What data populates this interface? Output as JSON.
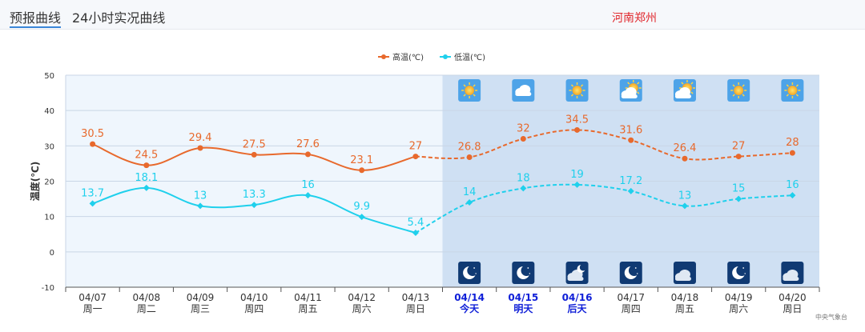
{
  "tabs": [
    {
      "label": "预报曲线",
      "active": true
    },
    {
      "label": "24小时实况曲线",
      "active": false
    }
  ],
  "city": "河南郑州",
  "source": "中央气象台",
  "chart_data": {
    "type": "line",
    "ylabel": "温度(℃)",
    "ylim": [
      -10,
      50
    ],
    "yticks": [
      -10,
      0,
      10,
      20,
      30,
      40,
      50
    ],
    "grid": true,
    "legend_position": "top-center",
    "categories": [
      {
        "date": "04/07",
        "day": "周一"
      },
      {
        "date": "04/08",
        "day": "周二"
      },
      {
        "date": "04/09",
        "day": "周三"
      },
      {
        "date": "04/10",
        "day": "周四"
      },
      {
        "date": "04/11",
        "day": "周五"
      },
      {
        "date": "04/12",
        "day": "周六"
      },
      {
        "date": "04/13",
        "day": "周日"
      },
      {
        "date": "04/14",
        "day": "今天",
        "highlight": true
      },
      {
        "date": "04/15",
        "day": "明天",
        "highlight": true
      },
      {
        "date": "04/16",
        "day": "后天",
        "highlight": true
      },
      {
        "date": "04/17",
        "day": "周四"
      },
      {
        "date": "04/18",
        "day": "周五"
      },
      {
        "date": "04/19",
        "day": "周六"
      },
      {
        "date": "04/20",
        "day": "周日"
      }
    ],
    "forecast_start_index": 7,
    "series": [
      {
        "name": "高温(℃)",
        "color": "#e8692c",
        "values": [
          30.5,
          24.5,
          29.4,
          27.5,
          27.6,
          23.1,
          27,
          26.8,
          32,
          34.5,
          31.6,
          26.4,
          27,
          28
        ]
      },
      {
        "name": "低温(℃)",
        "color": "#1fd0ec",
        "values": [
          13.7,
          18.1,
          13,
          13.3,
          16,
          9.9,
          5.4,
          14,
          18,
          19,
          17.2,
          13,
          15,
          16
        ]
      }
    ],
    "day_icons": [
      "sunny-icon",
      "cloudy-icon",
      "sunny-icon",
      "partly-cloudy-icon",
      "partly-cloudy-icon",
      "sunny-icon",
      "sunny-icon"
    ],
    "night_icons": [
      "moon-icon",
      "moon-icon",
      "cloudy-night-icon",
      "moon-icon",
      "overcast-night-icon",
      "moon-icon",
      "overcast-night-icon"
    ],
    "colors": {
      "past_bg": "#eff6fd",
      "forecast_bg": "#cfe0f3",
      "highlight_text": "#1020d8"
    }
  }
}
